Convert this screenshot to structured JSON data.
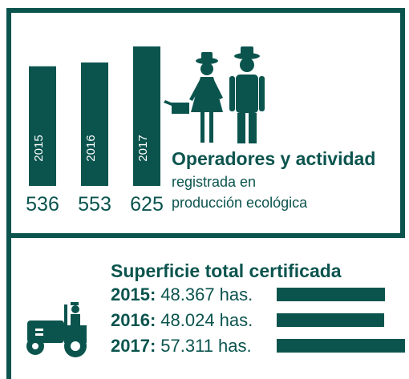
{
  "chart_data": [
    {
      "type": "bar",
      "title": "Operadores y actividad",
      "subtitle": [
        "registrada en",
        "producción ecológica"
      ],
      "categories": [
        "2015",
        "2016",
        "2017"
      ],
      "values": [
        536,
        553,
        625
      ],
      "color": "#0b544e"
    },
    {
      "type": "hbar",
      "title": "Superficie total certificada",
      "categories": [
        "2015:",
        "2016:",
        "2017:"
      ],
      "values": [
        48367,
        48024,
        57311
      ],
      "value_labels": [
        "48.367 has.",
        "48.024 has.",
        "57.311 has."
      ],
      "color": "#0b544e"
    }
  ]
}
